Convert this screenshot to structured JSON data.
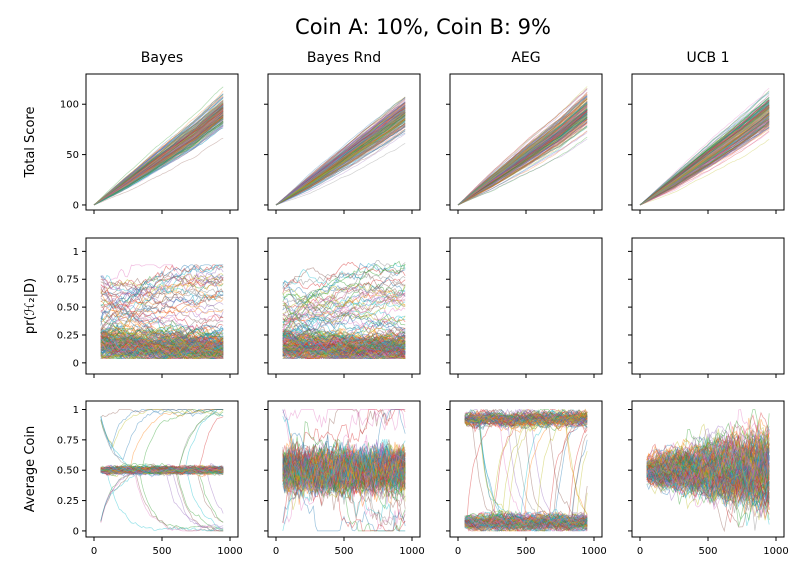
{
  "suptitle": "Coin A: 10%, Coin B: 9%",
  "row_ylabels": [
    "Total Score",
    "pr(ℋ₂|D)",
    "Average Coin"
  ],
  "chart_data": {
    "type": "line",
    "title": "Coin A: 10%, Coin B: 9%",
    "columns": [
      "Bayes",
      "Bayes Rnd",
      "AEG",
      "UCB 1"
    ],
    "xlim": [
      0,
      1000
    ],
    "xticks": [
      0,
      500,
      1000
    ],
    "series_per_panel": 200,
    "palette": [
      "#1f77b4",
      "#ff7f0e",
      "#2ca02c",
      "#d62728",
      "#9467bd",
      "#8c564b",
      "#e377c2",
      "#7f7f7f",
      "#bcbd22",
      "#17becf"
    ],
    "rows": [
      {
        "ylabel": "Total Score",
        "ylim": [
          -5,
          130
        ],
        "yticks": [
          0,
          50,
          100
        ],
        "panels": [
          {
            "column": "Bayes",
            "x": [
              0,
              250,
              500,
              750,
              950
            ],
            "mean": [
              0,
              23,
              47,
              71,
              93
            ],
            "spread": [
              0,
              6,
              10,
              13,
              15
            ]
          },
          {
            "column": "Bayes Rnd",
            "x": [
              0,
              250,
              500,
              750,
              950
            ],
            "mean": [
              0,
              23,
              47,
              71,
              91
            ],
            "spread": [
              0,
              6,
              10,
              13,
              15
            ]
          },
          {
            "column": "AEG",
            "x": [
              0,
              250,
              500,
              750,
              950
            ],
            "mean": [
              0,
              24,
              48,
              72,
              94
            ],
            "spread": [
              0,
              6,
              10,
              13,
              15
            ]
          },
          {
            "column": "UCB 1",
            "x": [
              0,
              250,
              500,
              750,
              950
            ],
            "mean": [
              0,
              23,
              47,
              71,
              92
            ],
            "spread": [
              0,
              6,
              10,
              13,
              15
            ]
          }
        ]
      },
      {
        "ylabel": "pr(ℋ₂|D)",
        "ylim": [
          -0.1,
          1.12
        ],
        "yticks": [
          0.0,
          0.25,
          0.5,
          0.75,
          1.0
        ],
        "panels": [
          {
            "column": "Bayes",
            "x_range": [
              50,
              950
            ],
            "start_range": [
              0.1,
              0.8
            ],
            "mid_range": [
              0.05,
              0.88
            ],
            "end_range": [
              0.04,
              0.86
            ],
            "main_band": [
              0.05,
              0.3
            ]
          },
          {
            "column": "Bayes Rnd",
            "x_range": [
              50,
              950
            ],
            "start_range": [
              0.1,
              0.7
            ],
            "mid_range": [
              0.05,
              0.92
            ],
            "end_range": [
              0.04,
              0.82
            ],
            "main_band": [
              0.05,
              0.3
            ]
          },
          {
            "column": "AEG"
          },
          {
            "column": "UCB 1"
          }
        ]
      },
      {
        "ylabel": "Average Coin",
        "ylim": [
          -0.05,
          1.07
        ],
        "yticks": [
          0.0,
          0.25,
          0.5,
          0.75,
          1.0
        ],
        "panels": [
          {
            "column": "Bayes",
            "x_range": [
              50,
              950
            ],
            "center": 0.5,
            "band": 0.02,
            "extremes": [
              0.0,
              1.0
            ]
          },
          {
            "column": "Bayes Rnd",
            "x_range": [
              50,
              950
            ],
            "center": 0.5,
            "band": 0.12,
            "extremes": [
              0.0,
              1.0
            ]
          },
          {
            "column": "AEG",
            "x_range": [
              50,
              950
            ],
            "clusters": [
              0.07,
              0.92
            ],
            "band": 0.05
          },
          {
            "column": "UCB 1",
            "x_range": [
              50,
              950
            ],
            "center": 0.5,
            "band_start": 0.08,
            "band_end": 0.22
          }
        ]
      }
    ]
  }
}
